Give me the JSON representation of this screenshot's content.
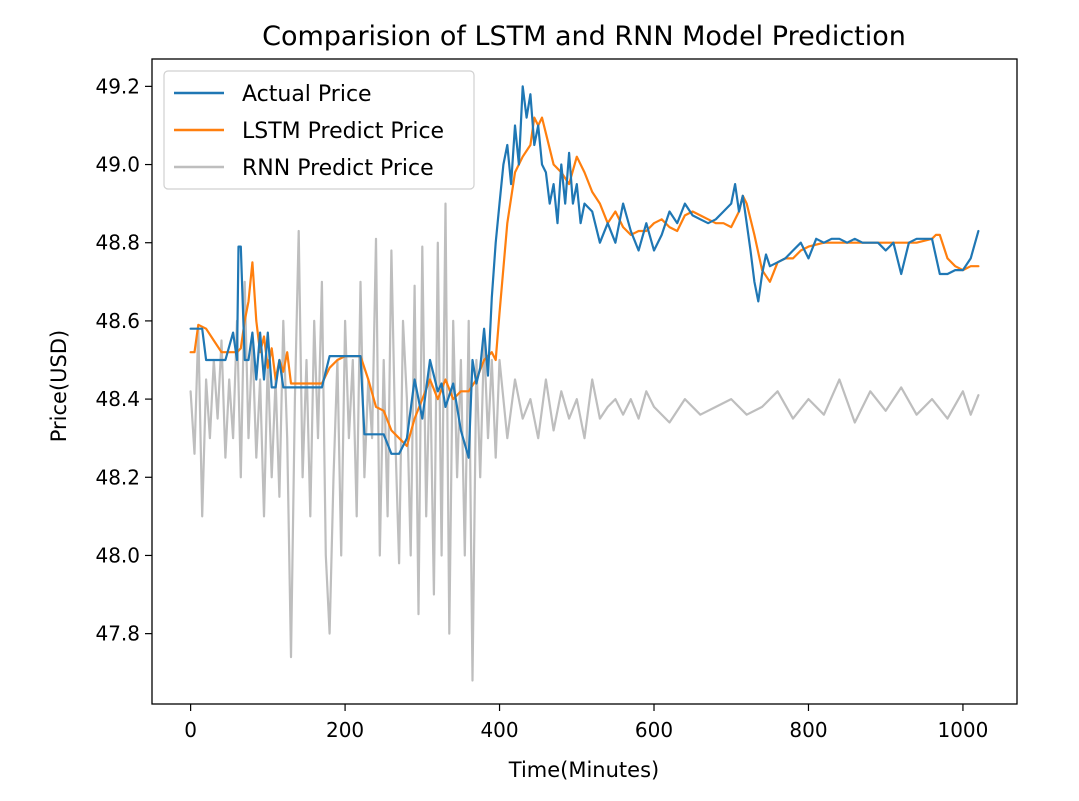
{
  "chart_data": {
    "type": "line",
    "title": "Comparision of LSTM and RNN Model Prediction",
    "xlabel": "Time(Minutes)",
    "ylabel": "Price(USD)",
    "xlim": [
      -50,
      1070
    ],
    "ylim": [
      47.62,
      49.27
    ],
    "xticks": [
      0,
      200,
      400,
      600,
      800,
      1000
    ],
    "yticks": [
      47.8,
      48.0,
      48.2,
      48.4,
      48.6,
      48.8,
      49.0,
      49.2
    ],
    "xtick_labels": [
      "0",
      "200",
      "400",
      "600",
      "800",
      "1000"
    ],
    "ytick_labels": [
      "47.8",
      "48.0",
      "48.2",
      "48.4",
      "48.6",
      "48.8",
      "49.0",
      "49.2"
    ],
    "grid": false,
    "legend_position": "top-left",
    "series": [
      {
        "name": "Actual Price",
        "color": "#1f77b4",
        "x": [
          0,
          10,
          15,
          20,
          30,
          45,
          55,
          60,
          62,
          65,
          70,
          75,
          80,
          85,
          90,
          95,
          100,
          105,
          110,
          115,
          120,
          125,
          130,
          140,
          150,
          160,
          170,
          180,
          190,
          200,
          210,
          220,
          225,
          230,
          240,
          250,
          260,
          265,
          270,
          280,
          290,
          295,
          300,
          310,
          320,
          325,
          330,
          340,
          350,
          360,
          365,
          370,
          375,
          380,
          385,
          390,
          395,
          400,
          405,
          410,
          415,
          420,
          425,
          430,
          435,
          440,
          445,
          450,
          455,
          460,
          465,
          470,
          475,
          480,
          485,
          490,
          495,
          500,
          505,
          510,
          520,
          530,
          540,
          550,
          560,
          570,
          580,
          590,
          600,
          610,
          620,
          630,
          640,
          650,
          660,
          670,
          680,
          690,
          700,
          705,
          710,
          715,
          720,
          725,
          730,
          735,
          740,
          745,
          750,
          760,
          770,
          780,
          790,
          800,
          810,
          820,
          830,
          840,
          850,
          860,
          870,
          880,
          890,
          900,
          910,
          920,
          930,
          940,
          950,
          960,
          970,
          980,
          990,
          1000,
          1010,
          1020
        ],
        "y": [
          48.58,
          48.58,
          48.58,
          48.5,
          48.5,
          48.5,
          48.57,
          48.5,
          48.79,
          48.79,
          48.5,
          48.5,
          48.57,
          48.45,
          48.57,
          48.45,
          48.57,
          48.43,
          48.43,
          48.5,
          48.43,
          48.43,
          48.43,
          48.43,
          48.43,
          48.43,
          48.43,
          48.51,
          48.51,
          48.51,
          48.51,
          48.51,
          48.31,
          48.31,
          48.31,
          48.31,
          48.26,
          48.26,
          48.26,
          48.3,
          48.45,
          48.4,
          48.35,
          48.5,
          48.42,
          48.44,
          48.38,
          48.44,
          48.32,
          48.25,
          48.5,
          48.44,
          48.48,
          48.58,
          48.46,
          48.66,
          48.8,
          48.9,
          49.0,
          49.05,
          48.95,
          49.1,
          49.0,
          49.2,
          49.12,
          49.18,
          49.05,
          49.1,
          49.0,
          48.98,
          48.9,
          48.95,
          48.85,
          49.0,
          48.9,
          49.03,
          48.9,
          48.95,
          48.85,
          48.9,
          48.88,
          48.8,
          48.85,
          48.8,
          48.9,
          48.83,
          48.78,
          48.85,
          48.78,
          48.82,
          48.88,
          48.85,
          48.9,
          48.87,
          48.86,
          48.85,
          48.86,
          48.88,
          48.9,
          48.95,
          48.88,
          48.92,
          48.85,
          48.78,
          48.7,
          48.65,
          48.72,
          48.77,
          48.74,
          48.75,
          48.76,
          48.78,
          48.8,
          48.76,
          48.81,
          48.8,
          48.81,
          48.81,
          48.8,
          48.81,
          48.8,
          48.8,
          48.8,
          48.78,
          48.8,
          48.72,
          48.8,
          48.81,
          48.81,
          48.81,
          48.72,
          48.72,
          48.73,
          48.73,
          48.76,
          48.83
        ]
      },
      {
        "name": "LSTM Predict Price",
        "color": "#ff7f0e",
        "x": [
          0,
          5,
          10,
          20,
          30,
          40,
          50,
          60,
          65,
          70,
          75,
          80,
          85,
          90,
          95,
          100,
          105,
          110,
          115,
          120,
          125,
          130,
          140,
          150,
          160,
          170,
          180,
          190,
          200,
          210,
          220,
          230,
          240,
          250,
          260,
          270,
          280,
          290,
          300,
          310,
          320,
          330,
          340,
          350,
          360,
          370,
          380,
          390,
          395,
          400,
          410,
          420,
          430,
          440,
          445,
          450,
          455,
          460,
          470,
          480,
          490,
          500,
          510,
          520,
          530,
          540,
          550,
          560,
          570,
          580,
          590,
          600,
          610,
          620,
          630,
          640,
          650,
          660,
          670,
          680,
          690,
          700,
          710,
          715,
          720,
          730,
          740,
          750,
          760,
          770,
          780,
          790,
          800,
          820,
          840,
          860,
          880,
          900,
          920,
          940,
          960,
          965,
          970,
          980,
          990,
          1000,
          1010,
          1020
        ],
        "y": [
          48.52,
          48.52,
          48.59,
          48.58,
          48.55,
          48.52,
          48.52,
          48.52,
          48.53,
          48.6,
          48.65,
          48.75,
          48.6,
          48.52,
          48.56,
          48.48,
          48.53,
          48.45,
          48.5,
          48.47,
          48.52,
          48.44,
          48.44,
          48.44,
          48.44,
          48.44,
          48.48,
          48.5,
          48.51,
          48.51,
          48.51,
          48.45,
          48.38,
          48.37,
          48.32,
          48.3,
          48.28,
          48.35,
          48.4,
          48.45,
          48.4,
          48.45,
          48.4,
          48.42,
          48.42,
          48.45,
          48.5,
          48.52,
          48.5,
          48.62,
          48.85,
          48.98,
          49.02,
          49.05,
          49.12,
          49.1,
          49.12,
          49.08,
          49.0,
          48.98,
          48.95,
          49.02,
          48.98,
          48.93,
          48.9,
          48.85,
          48.88,
          48.84,
          48.82,
          48.83,
          48.83,
          48.85,
          48.86,
          48.84,
          48.83,
          48.87,
          48.88,
          48.87,
          48.86,
          48.85,
          48.85,
          48.84,
          48.88,
          48.92,
          48.9,
          48.82,
          48.73,
          48.7,
          48.75,
          48.76,
          48.76,
          48.78,
          48.79,
          48.8,
          48.8,
          48.8,
          48.8,
          48.8,
          48.8,
          48.8,
          48.81,
          48.82,
          48.82,
          48.76,
          48.74,
          48.73,
          48.74,
          48.74
        ]
      },
      {
        "name": "RNN Predict Price",
        "color": "#bebebe",
        "x": [
          0,
          5,
          10,
          15,
          20,
          25,
          30,
          35,
          40,
          45,
          50,
          55,
          60,
          65,
          70,
          75,
          80,
          85,
          90,
          95,
          100,
          105,
          110,
          115,
          120,
          125,
          130,
          135,
          140,
          145,
          150,
          155,
          160,
          165,
          170,
          175,
          180,
          185,
          190,
          195,
          200,
          205,
          210,
          215,
          220,
          225,
          230,
          235,
          240,
          245,
          250,
          255,
          260,
          265,
          270,
          275,
          280,
          285,
          290,
          295,
          300,
          305,
          310,
          315,
          320,
          325,
          330,
          335,
          340,
          345,
          350,
          355,
          360,
          365,
          370,
          375,
          380,
          385,
          390,
          395,
          400,
          410,
          420,
          430,
          440,
          450,
          460,
          470,
          480,
          490,
          500,
          510,
          520,
          530,
          540,
          550,
          560,
          570,
          580,
          590,
          600,
          620,
          640,
          660,
          680,
          700,
          720,
          740,
          760,
          780,
          800,
          820,
          840,
          860,
          880,
          900,
          920,
          940,
          960,
          980,
          1000,
          1010,
          1020
        ],
        "y": [
          48.42,
          48.26,
          48.58,
          48.1,
          48.45,
          48.3,
          48.5,
          48.35,
          48.55,
          48.25,
          48.45,
          48.3,
          48.6,
          48.2,
          48.7,
          48.3,
          48.55,
          48.25,
          48.45,
          48.1,
          48.5,
          48.2,
          48.45,
          48.15,
          48.6,
          48.3,
          47.74,
          48.4,
          48.83,
          48.2,
          48.5,
          48.1,
          48.6,
          48.3,
          48.7,
          48.0,
          47.8,
          48.2,
          48.5,
          48.0,
          48.6,
          48.3,
          48.5,
          48.1,
          48.7,
          48.2,
          48.45,
          48.3,
          48.81,
          48.0,
          48.5,
          48.1,
          48.78,
          48.3,
          47.98,
          48.6,
          48.4,
          48.0,
          48.69,
          47.85,
          48.79,
          48.1,
          48.5,
          47.9,
          48.8,
          48.0,
          48.9,
          47.8,
          48.6,
          48.2,
          48.5,
          48.0,
          48.6,
          47.68,
          48.5,
          48.2,
          48.55,
          48.3,
          48.5,
          48.25,
          48.5,
          48.3,
          48.45,
          48.35,
          48.4,
          48.3,
          48.45,
          48.32,
          48.42,
          48.35,
          48.4,
          48.3,
          48.45,
          48.35,
          48.38,
          48.4,
          48.36,
          48.4,
          48.35,
          48.42,
          48.38,
          48.34,
          48.4,
          48.36,
          48.38,
          48.4,
          48.36,
          48.38,
          48.42,
          48.35,
          48.4,
          48.36,
          48.45,
          48.34,
          48.42,
          48.37,
          48.43,
          48.36,
          48.4,
          48.35,
          48.42,
          48.36,
          48.41
        ]
      }
    ]
  }
}
